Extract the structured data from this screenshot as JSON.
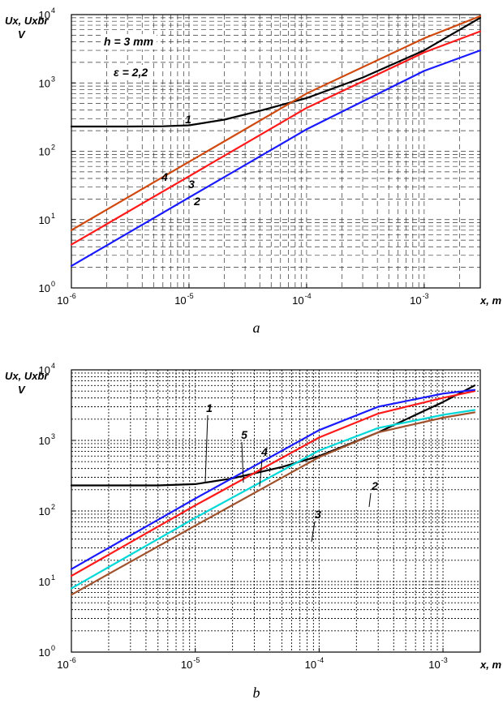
{
  "chart_data": [
    {
      "panel": "a",
      "type": "line",
      "xscale": "log",
      "yscale": "log",
      "xlim": [
        1e-06,
        0.003
      ],
      "ylim": [
        1,
        10000
      ],
      "xticks": [
        1e-06,
        1e-05,
        0.0001,
        0.001
      ],
      "yticks": [
        1,
        10,
        100,
        1000,
        10000
      ],
      "ylabel_lines": [
        "Ux, Uxbr",
        "V"
      ],
      "xlabel": "x, m",
      "grid": "dashed",
      "annotations": [
        {
          "text": "h = 3 mm"
        },
        {
          "text": "ε = 2,2"
        }
      ],
      "series": [
        {
          "name": "1",
          "color": "#000000",
          "x": [
            1e-06,
            3e-06,
            6e-06,
            1e-05,
            2e-05,
            4e-05,
            0.0001,
            0.0003,
            0.001,
            0.003
          ],
          "y": [
            230,
            230,
            232,
            240,
            290,
            390,
            600,
            1200,
            3000,
            9000
          ]
        },
        {
          "name": "2",
          "color": "#1a1aff",
          "x": [
            1e-06,
            1e-05,
            0.0001,
            0.001,
            0.003
          ],
          "y": [
            2.1,
            21,
            210,
            1500,
            3000
          ]
        },
        {
          "name": "3",
          "color": "#ff1a1a",
          "x": [
            1e-06,
            1e-05,
            0.0001,
            0.001,
            0.003
          ],
          "y": [
            4.3,
            43,
            430,
            2800,
            5700
          ]
        },
        {
          "name": "4",
          "color": "#d04a10",
          "x": [
            1e-06,
            1e-05,
            0.0001,
            0.001,
            0.003
          ],
          "y": [
            7,
            70,
            700,
            4500,
            9500
          ]
        }
      ]
    },
    {
      "panel": "b",
      "type": "line",
      "xscale": "log",
      "yscale": "log",
      "xlim": [
        1e-06,
        0.002
      ],
      "ylim": [
        1,
        10000
      ],
      "xticks": [
        1e-06,
        1e-05,
        0.0001,
        0.001
      ],
      "yticks": [
        1,
        10,
        100,
        1000,
        10000
      ],
      "ylabel_lines": [
        "Ux, Uxbr",
        "V"
      ],
      "xlabel": "x, m",
      "grid": "dotted",
      "series": [
        {
          "name": "1",
          "color": "#000000",
          "x": [
            1e-06,
            5e-06,
            1e-05,
            2e-05,
            5e-05,
            0.0001,
            0.0003,
            0.001,
            0.0018
          ],
          "y": [
            230,
            230,
            240,
            290,
            420,
            600,
            1300,
            3500,
            6000
          ]
        },
        {
          "name": "2",
          "color": "#a0522d",
          "x": [
            1e-06,
            1e-05,
            0.0001,
            0.0003,
            0.001,
            0.0018
          ],
          "y": [
            6.5,
            62,
            580,
            1300,
            2100,
            2500
          ]
        },
        {
          "name": "3",
          "color": "#00d8d8",
          "x": [
            1e-06,
            1e-05,
            0.0001,
            0.0003,
            0.001,
            0.0018
          ],
          "y": [
            8,
            80,
            720,
            1500,
            2300,
            2700
          ]
        },
        {
          "name": "4",
          "color": "#ff1a1a",
          "x": [
            1e-06,
            1e-05,
            0.0001,
            0.0003,
            0.001,
            0.0018
          ],
          "y": [
            12,
            120,
            1100,
            2400,
            4000,
            5000
          ]
        },
        {
          "name": "5",
          "color": "#1a1aff",
          "x": [
            1e-06,
            1e-05,
            0.0001,
            0.0003,
            0.001,
            0.0018
          ],
          "y": [
            15,
            150,
            1400,
            3000,
            4600,
            5200
          ]
        }
      ]
    }
  ],
  "captions": [
    "a",
    "b"
  ]
}
